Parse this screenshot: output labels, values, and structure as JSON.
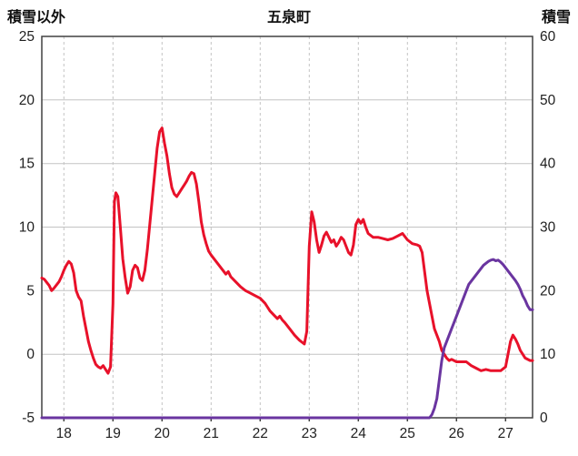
{
  "chart_data": {
    "type": "line",
    "title": "五泉町",
    "x_range": [
      17.55,
      27.55
    ],
    "x_ticks": [
      18,
      19,
      20,
      21,
      22,
      23,
      24,
      25,
      26,
      27
    ],
    "left_axis": {
      "label": "積雪以外",
      "range": [
        -5,
        25
      ],
      "ticks": [
        -5,
        0,
        5,
        10,
        15,
        20,
        25
      ]
    },
    "right_axis": {
      "label": "積雪",
      "range": [
        0,
        60
      ],
      "ticks": [
        0,
        10,
        20,
        30,
        40,
        50,
        60
      ]
    },
    "grid": "on",
    "legend": "none",
    "colors": {
      "grid": "#c3c3c3",
      "axis": "#404040",
      "text": "#1f1f1f",
      "background": "#ffffff"
    },
    "series": [
      {
        "id": "non-snow-series-line",
        "name": "積雪以外",
        "axis": "left",
        "color": "#e8112a",
        "points": [
          [
            17.55,
            6.0
          ],
          [
            17.6,
            5.9
          ],
          [
            17.7,
            5.4
          ],
          [
            17.75,
            5.0
          ],
          [
            17.8,
            5.2
          ],
          [
            17.9,
            5.7
          ],
          [
            17.95,
            6.1
          ],
          [
            18.0,
            6.6
          ],
          [
            18.05,
            7.0
          ],
          [
            18.1,
            7.3
          ],
          [
            18.15,
            7.1
          ],
          [
            18.2,
            6.4
          ],
          [
            18.25,
            5.0
          ],
          [
            18.3,
            4.5
          ],
          [
            18.35,
            4.2
          ],
          [
            18.4,
            3.0
          ],
          [
            18.45,
            2.0
          ],
          [
            18.5,
            1.0
          ],
          [
            18.55,
            0.3
          ],
          [
            18.6,
            -0.3
          ],
          [
            18.65,
            -0.8
          ],
          [
            18.7,
            -1.0
          ],
          [
            18.75,
            -1.1
          ],
          [
            18.8,
            -0.9
          ],
          [
            18.85,
            -1.2
          ],
          [
            18.9,
            -1.5
          ],
          [
            18.95,
            -1.0
          ],
          [
            19.0,
            4.0
          ],
          [
            19.03,
            12.0
          ],
          [
            19.06,
            12.7
          ],
          [
            19.1,
            12.4
          ],
          [
            19.15,
            10.0
          ],
          [
            19.2,
            7.5
          ],
          [
            19.25,
            6.0
          ],
          [
            19.3,
            4.8
          ],
          [
            19.35,
            5.3
          ],
          [
            19.4,
            6.6
          ],
          [
            19.45,
            7.0
          ],
          [
            19.5,
            6.8
          ],
          [
            19.55,
            6.0
          ],
          [
            19.6,
            5.8
          ],
          [
            19.65,
            6.6
          ],
          [
            19.7,
            8.2
          ],
          [
            19.75,
            10.2
          ],
          [
            19.8,
            12.2
          ],
          [
            19.85,
            14.2
          ],
          [
            19.9,
            16.2
          ],
          [
            19.95,
            17.5
          ],
          [
            20.0,
            17.8
          ],
          [
            20.05,
            16.6
          ],
          [
            20.1,
            15.6
          ],
          [
            20.15,
            14.2
          ],
          [
            20.2,
            13.1
          ],
          [
            20.25,
            12.6
          ],
          [
            20.3,
            12.4
          ],
          [
            20.35,
            12.7
          ],
          [
            20.4,
            13.0
          ],
          [
            20.45,
            13.3
          ],
          [
            20.5,
            13.6
          ],
          [
            20.55,
            14.0
          ],
          [
            20.6,
            14.3
          ],
          [
            20.65,
            14.2
          ],
          [
            20.7,
            13.4
          ],
          [
            20.75,
            12.0
          ],
          [
            20.8,
            10.4
          ],
          [
            20.85,
            9.4
          ],
          [
            20.9,
            8.7
          ],
          [
            20.95,
            8.1
          ],
          [
            21.0,
            7.8
          ],
          [
            21.1,
            7.3
          ],
          [
            21.2,
            6.8
          ],
          [
            21.3,
            6.3
          ],
          [
            21.35,
            6.5
          ],
          [
            21.4,
            6.1
          ],
          [
            21.5,
            5.7
          ],
          [
            21.6,
            5.3
          ],
          [
            21.7,
            5.0
          ],
          [
            21.8,
            4.8
          ],
          [
            21.9,
            4.6
          ],
          [
            22.0,
            4.4
          ],
          [
            22.1,
            4.0
          ],
          [
            22.15,
            3.7
          ],
          [
            22.2,
            3.4
          ],
          [
            22.3,
            3.0
          ],
          [
            22.35,
            2.8
          ],
          [
            22.4,
            3.0
          ],
          [
            22.45,
            2.7
          ],
          [
            22.5,
            2.5
          ],
          [
            22.6,
            2.0
          ],
          [
            22.7,
            1.5
          ],
          [
            22.8,
            1.1
          ],
          [
            22.9,
            0.8
          ],
          [
            22.95,
            1.8
          ],
          [
            23.0,
            8.5
          ],
          [
            23.05,
            11.2
          ],
          [
            23.1,
            10.4
          ],
          [
            23.15,
            9.0
          ],
          [
            23.2,
            8.0
          ],
          [
            23.25,
            8.6
          ],
          [
            23.3,
            9.3
          ],
          [
            23.35,
            9.6
          ],
          [
            23.4,
            9.2
          ],
          [
            23.45,
            8.8
          ],
          [
            23.5,
            9.0
          ],
          [
            23.55,
            8.5
          ],
          [
            23.6,
            8.8
          ],
          [
            23.65,
            9.2
          ],
          [
            23.7,
            9.0
          ],
          [
            23.75,
            8.5
          ],
          [
            23.8,
            8.0
          ],
          [
            23.85,
            7.8
          ],
          [
            23.9,
            8.6
          ],
          [
            23.95,
            10.2
          ],
          [
            24.0,
            10.6
          ],
          [
            24.05,
            10.3
          ],
          [
            24.1,
            10.6
          ],
          [
            24.15,
            10.0
          ],
          [
            24.2,
            9.5
          ],
          [
            24.3,
            9.2
          ],
          [
            24.4,
            9.2
          ],
          [
            24.5,
            9.1
          ],
          [
            24.6,
            9.0
          ],
          [
            24.7,
            9.1
          ],
          [
            24.8,
            9.3
          ],
          [
            24.9,
            9.5
          ],
          [
            25.0,
            9.0
          ],
          [
            25.1,
            8.7
          ],
          [
            25.2,
            8.6
          ],
          [
            25.25,
            8.5
          ],
          [
            25.3,
            8.0
          ],
          [
            25.35,
            6.5
          ],
          [
            25.4,
            5.0
          ],
          [
            25.45,
            4.0
          ],
          [
            25.5,
            3.0
          ],
          [
            25.55,
            2.0
          ],
          [
            25.6,
            1.5
          ],
          [
            25.65,
            1.0
          ],
          [
            25.7,
            0.3
          ],
          [
            25.75,
            0.0
          ],
          [
            25.8,
            -0.3
          ],
          [
            25.85,
            -0.5
          ],
          [
            25.9,
            -0.4
          ],
          [
            26.0,
            -0.6
          ],
          [
            26.1,
            -0.6
          ],
          [
            26.2,
            -0.6
          ],
          [
            26.3,
            -0.9
          ],
          [
            26.4,
            -1.1
          ],
          [
            26.5,
            -1.3
          ],
          [
            26.6,
            -1.2
          ],
          [
            26.7,
            -1.3
          ],
          [
            26.8,
            -1.3
          ],
          [
            26.9,
            -1.3
          ],
          [
            27.0,
            -1.0
          ],
          [
            27.05,
            0.0
          ],
          [
            27.1,
            1.0
          ],
          [
            27.15,
            1.5
          ],
          [
            27.2,
            1.2
          ],
          [
            27.25,
            0.8
          ],
          [
            27.3,
            0.3
          ],
          [
            27.35,
            0.0
          ],
          [
            27.4,
            -0.3
          ],
          [
            27.5,
            -0.5
          ],
          [
            27.55,
            -0.5
          ]
        ]
      },
      {
        "id": "snow-series-line",
        "name": "積雪",
        "axis": "right",
        "color": "#6a35a0",
        "points": [
          [
            17.55,
            0
          ],
          [
            25.45,
            0
          ],
          [
            25.5,
            0.5
          ],
          [
            25.55,
            1.5
          ],
          [
            25.6,
            3
          ],
          [
            25.65,
            6
          ],
          [
            25.7,
            9
          ],
          [
            25.75,
            11
          ],
          [
            25.8,
            12
          ],
          [
            25.85,
            13
          ],
          [
            25.9,
            14
          ],
          [
            25.95,
            15
          ],
          [
            26.0,
            16
          ],
          [
            26.05,
            17
          ],
          [
            26.1,
            18
          ],
          [
            26.15,
            19
          ],
          [
            26.2,
            20
          ],
          [
            26.25,
            21
          ],
          [
            26.3,
            21.5
          ],
          [
            26.35,
            22
          ],
          [
            26.4,
            22.5
          ],
          [
            26.45,
            23
          ],
          [
            26.5,
            23.5
          ],
          [
            26.55,
            24
          ],
          [
            26.6,
            24.3
          ],
          [
            26.65,
            24.6
          ],
          [
            26.7,
            24.8
          ],
          [
            26.75,
            24.9
          ],
          [
            26.8,
            24.7
          ],
          [
            26.85,
            24.8
          ],
          [
            26.9,
            24.5
          ],
          [
            26.95,
            24.1
          ],
          [
            27.0,
            23.6
          ],
          [
            27.05,
            23.1
          ],
          [
            27.1,
            22.6
          ],
          [
            27.15,
            22.1
          ],
          [
            27.2,
            21.6
          ],
          [
            27.25,
            21.0
          ],
          [
            27.3,
            20.2
          ],
          [
            27.35,
            19.2
          ],
          [
            27.4,
            18.5
          ],
          [
            27.45,
            17.6
          ],
          [
            27.5,
            17.0
          ],
          [
            27.55,
            17.0
          ]
        ]
      }
    ]
  }
}
